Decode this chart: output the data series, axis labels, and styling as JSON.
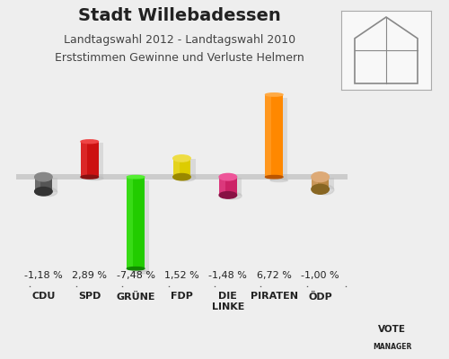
{
  "title": "Stadt Willebadessen",
  "subtitle1": "Landtagswahl 2012 - Landtagswahl 2010",
  "subtitle2": "Erststimmen Gewinne und Verluste Helmern",
  "categories": [
    "CDU",
    "SPD",
    "GRÜNE",
    "FDP",
    "DIE\nLINKE",
    "PIRATEN",
    "ÖDP"
  ],
  "values": [
    -1.18,
    2.89,
    -7.48,
    1.52,
    -1.48,
    6.72,
    -1.0
  ],
  "labels": [
    "-1,18 %",
    "2,89 %",
    "-7,48 %",
    "1,52 %",
    "-1,48 %",
    "6,72 %",
    "-1,00 %"
  ],
  "colors": [
    "#555555",
    "#cc1111",
    "#22cc00",
    "#ddcc00",
    "#cc2266",
    "#ff8800",
    "#bb8844"
  ],
  "colors_dark": [
    "#333333",
    "#881111",
    "#118800",
    "#998800",
    "#881144",
    "#bb5500",
    "#886622"
  ],
  "colors_light": [
    "#888888",
    "#ee4444",
    "#55ee33",
    "#eedd44",
    "#ee5599",
    "#ffaa44",
    "#ddaa77"
  ],
  "background_color": "#eeeeee",
  "bar_width": 0.38,
  "ylim": [
    -9.0,
    8.0
  ],
  "title_fontsize": 14,
  "subtitle_fontsize": 9,
  "label_fontsize": 8
}
